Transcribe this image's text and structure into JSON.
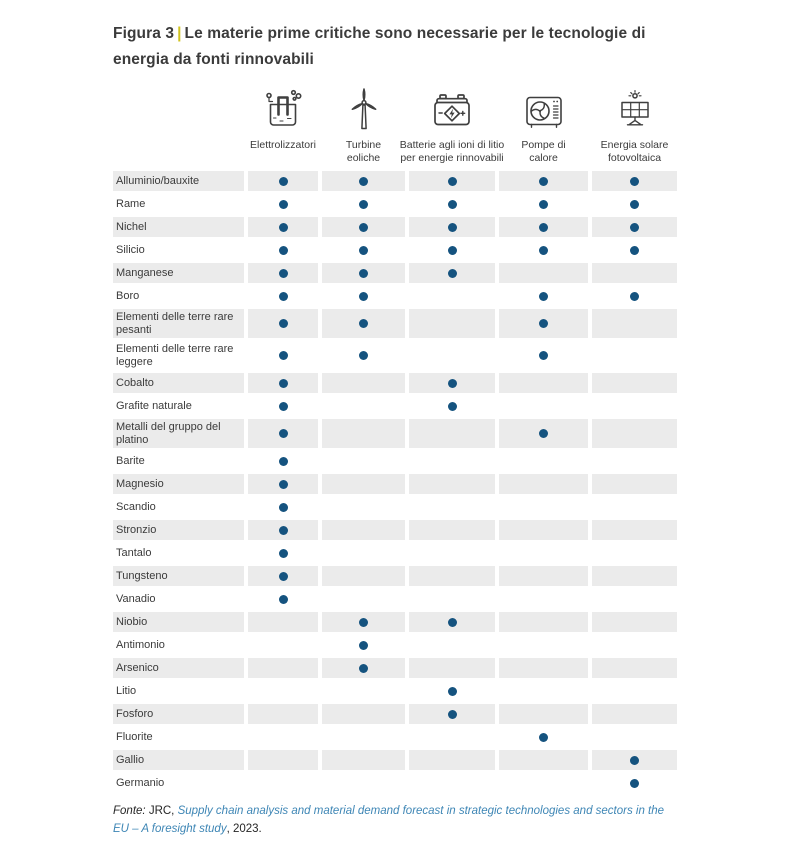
{
  "figure_header": {
    "label": "Figura 3",
    "separator": "|",
    "title": "Le materie prime critiche sono necessarie per le tecnologie di energia da fonti rinnovabili"
  },
  "chart_data": {
    "type": "table",
    "title": "Figura 3 | Le materie prime critiche sono necessarie per le tecnologie di energia da fonti rinnovabili",
    "columns": [
      {
        "label": "Elettrolizzatori",
        "icon": "electrolyzer-icon"
      },
      {
        "label": "Turbine eoliche",
        "icon": "wind-turbine-icon"
      },
      {
        "label": "Batterie agli ioni di litio per energie rinnovabili",
        "icon": "lithium-battery-icon"
      },
      {
        "label": "Pompe di calore",
        "icon": "heat-pump-icon"
      },
      {
        "label": "Energia solare fotovoltaica",
        "icon": "solar-pv-icon"
      }
    ],
    "rows": [
      {
        "label": "Alluminio/bauxite",
        "cells": [
          1,
          1,
          1,
          1,
          1
        ]
      },
      {
        "label": "Rame",
        "cells": [
          1,
          1,
          1,
          1,
          1
        ]
      },
      {
        "label": "Nichel",
        "cells": [
          1,
          1,
          1,
          1,
          1
        ]
      },
      {
        "label": "Silicio",
        "cells": [
          1,
          1,
          1,
          1,
          1
        ]
      },
      {
        "label": "Manganese",
        "cells": [
          1,
          1,
          1,
          0,
          0
        ]
      },
      {
        "label": "Boro",
        "cells": [
          1,
          1,
          0,
          1,
          1
        ]
      },
      {
        "label": "Elementi delle terre rare pesanti",
        "cells": [
          1,
          1,
          0,
          1,
          0
        ]
      },
      {
        "label": "Elementi delle terre rare leggere",
        "cells": [
          1,
          1,
          0,
          1,
          0
        ]
      },
      {
        "label": "Cobalto",
        "cells": [
          1,
          0,
          1,
          0,
          0
        ]
      },
      {
        "label": "Grafite naturale",
        "cells": [
          1,
          0,
          1,
          0,
          0
        ]
      },
      {
        "label": "Metalli del gruppo del platino",
        "cells": [
          1,
          0,
          0,
          1,
          0
        ]
      },
      {
        "label": "Barite",
        "cells": [
          1,
          0,
          0,
          0,
          0
        ]
      },
      {
        "label": "Magnesio",
        "cells": [
          1,
          0,
          0,
          0,
          0
        ]
      },
      {
        "label": "Scandio",
        "cells": [
          1,
          0,
          0,
          0,
          0
        ]
      },
      {
        "label": "Stronzio",
        "cells": [
          1,
          0,
          0,
          0,
          0
        ]
      },
      {
        "label": "Tantalo",
        "cells": [
          1,
          0,
          0,
          0,
          0
        ]
      },
      {
        "label": "Tungsteno",
        "cells": [
          1,
          0,
          0,
          0,
          0
        ]
      },
      {
        "label": "Vanadio",
        "cells": [
          1,
          0,
          0,
          0,
          0
        ]
      },
      {
        "label": "Niobio",
        "cells": [
          0,
          1,
          1,
          0,
          0
        ]
      },
      {
        "label": "Antimonio",
        "cells": [
          0,
          1,
          0,
          0,
          0
        ]
      },
      {
        "label": "Arsenico",
        "cells": [
          0,
          1,
          0,
          0,
          0
        ]
      },
      {
        "label": "Litio",
        "cells": [
          0,
          0,
          1,
          0,
          0
        ]
      },
      {
        "label": "Fosforo",
        "cells": [
          0,
          0,
          1,
          0,
          0
        ]
      },
      {
        "label": "Fluorite",
        "cells": [
          0,
          0,
          0,
          1,
          0
        ]
      },
      {
        "label": "Gallio",
        "cells": [
          0,
          0,
          0,
          0,
          1
        ]
      },
      {
        "label": "Germanio",
        "cells": [
          0,
          0,
          0,
          0,
          1
        ]
      }
    ]
  },
  "footer": {
    "source_label": "Fonte:",
    "source_org": "JRC,",
    "source_title": "Supply chain analysis and material demand forecast in strategic technologies and sectors in the EU – A foresight study",
    "source_suffix": ", 2023."
  },
  "colors": {
    "dot": "#15537f",
    "stripe": "#ebebeb",
    "accent": "#d0c31f",
    "link": "#3e86b5",
    "text": "#3b3b3b"
  }
}
